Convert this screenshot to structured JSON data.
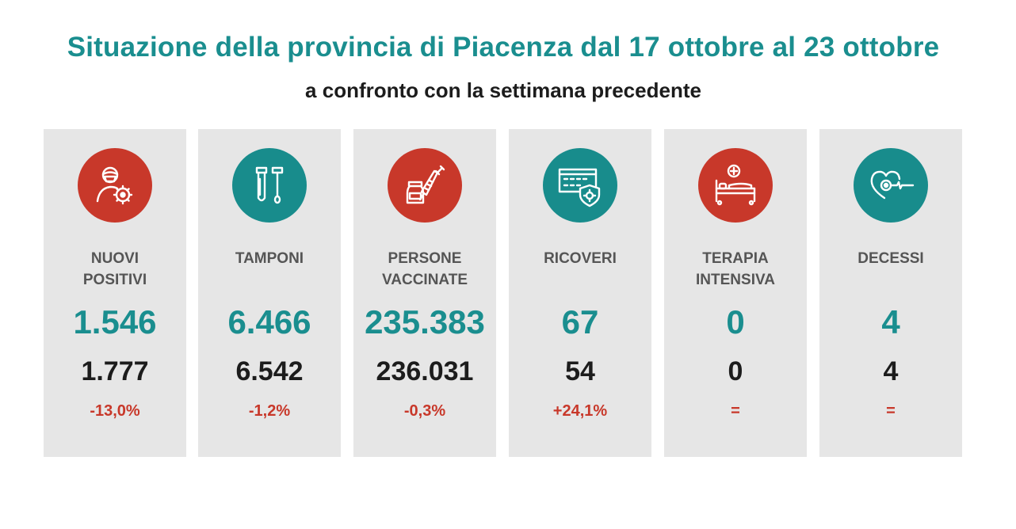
{
  "header": {
    "title": "Situazione della provincia di Piacenza dal 17 ottobre al 23 ottobre",
    "subtitle": "a confronto con la settimana precedente"
  },
  "colors": {
    "teal": "#1a8e8f",
    "red": "#c8382a",
    "card_background": "#e6e6e6"
  },
  "cards": [
    {
      "icon": "person-mask-virus-icon",
      "icon_color": "red",
      "label": "NUOVI\nPOSITIVI",
      "current": "1.546",
      "previous": "1.777",
      "change": "-13,0%"
    },
    {
      "icon": "swab-test-tubes-icon",
      "icon_color": "teal",
      "label": "TAMPONI",
      "current": "6.466",
      "previous": "6.542",
      "change": "-1,2%"
    },
    {
      "icon": "vaccine-syringe-vial-icon",
      "icon_color": "red",
      "label": "PERSONE\nVACCINATE",
      "current": "235.383",
      "previous": "236.031",
      "change": "-0,3%"
    },
    {
      "icon": "hospital-shield-virus-icon",
      "icon_color": "teal",
      "label": "RICOVERI",
      "current": "67",
      "previous": "54",
      "change": "+24,1%"
    },
    {
      "icon": "hospital-bed-icon",
      "icon_color": "red",
      "label": "TERAPIA\nINTENSIVA",
      "current": "0",
      "previous": "0",
      "change": "="
    },
    {
      "icon": "heart-pulse-icon",
      "icon_color": "teal",
      "label": "DECESSI",
      "current": "4",
      "previous": "4",
      "change": "="
    }
  ]
}
